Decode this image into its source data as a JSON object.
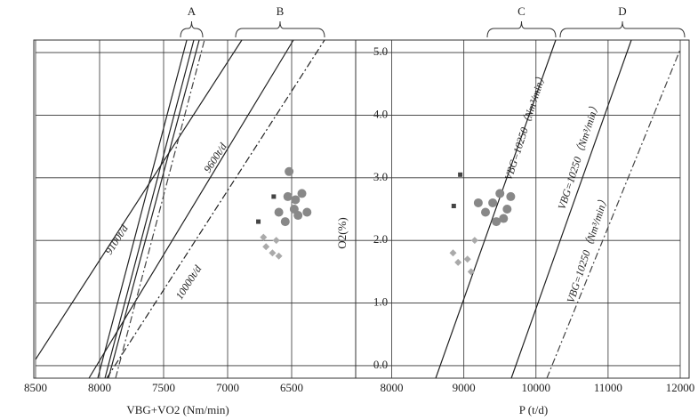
{
  "chart_data": [
    {
      "type": "line",
      "xlabel": "VBG+VO2 (Nm/min)",
      "ylabel": "O2(%)",
      "xlim": [
        8500,
        6000
      ],
      "xticks": [
        8500,
        8000,
        7500,
        7000,
        6500
      ],
      "ylim": [
        -0.2,
        5.2
      ],
      "yticks": [
        {
          "value": 0,
          "label": "0.0"
        },
        {
          "value": 1,
          "label": "1.0"
        },
        {
          "value": 2,
          "label": "2.0"
        },
        {
          "value": 3,
          "label": "3.0"
        },
        {
          "value": 4,
          "label": "4.0"
        },
        {
          "value": 5,
          "label": "5.0"
        }
      ],
      "grid": true,
      "annotations": [
        "A",
        "B"
      ],
      "lines": [
        {
          "name": "9100t/d",
          "color": "#222222",
          "style": "solid",
          "x": [
            8500,
            6889
          ],
          "y": [
            0.1,
            5.2
          ]
        },
        {
          "name": "9600t/d",
          "color": "#222222",
          "style": "solid",
          "x": [
            8083,
            6486
          ],
          "y": [
            -0.2,
            5.2
          ]
        },
        {
          "name": "10000t/d",
          "color": "#222222",
          "style": "dashdot",
          "x": [
            7944,
            6243
          ],
          "y": [
            -0.2,
            5.2
          ]
        },
        {
          "color": "#222222",
          "style": "solid",
          "x": [
            8014,
            7319
          ],
          "y": [
            -0.2,
            5.2
          ]
        },
        {
          "color": "#222222",
          "style": "solid",
          "x": [
            7958,
            7264
          ],
          "y": [
            -0.2,
            5.2
          ]
        },
        {
          "color": "#222222",
          "style": "solid",
          "x": [
            7931,
            7222
          ],
          "y": [
            -0.2,
            5.2
          ]
        },
        {
          "color": "#444444",
          "style": "dashdot",
          "x": [
            7875,
            7181
          ],
          "y": [
            -0.2,
            5.2
          ]
        }
      ],
      "scatter": [
        {
          "marker": "circle",
          "color": "#888888",
          "x": [
            6520,
            6530,
            6470,
            6420,
            6600,
            6450,
            6380,
            6550,
            6480
          ],
          "y": [
            3.1,
            2.7,
            2.65,
            2.75,
            2.45,
            2.4,
            2.45,
            2.3,
            2.5
          ]
        },
        {
          "marker": "diamond",
          "color": "#aaaaaa",
          "x": [
            6720,
            6650,
            6600,
            6700,
            6620
          ],
          "y": [
            2.05,
            1.8,
            1.75,
            1.9,
            2.0
          ]
        },
        {
          "marker": "square",
          "color": "#444444",
          "x": [
            6640,
            6760
          ],
          "y": [
            2.7,
            2.3
          ]
        }
      ]
    },
    {
      "type": "line",
      "xlabel": "P (t/d)",
      "xlim": [
        7500,
        12000
      ],
      "xticks": [
        8000,
        9000,
        10000,
        11000,
        12000
      ],
      "ylim": [
        -0.2,
        5.2
      ],
      "grid": true,
      "annotations": [
        "C",
        "D"
      ],
      "lines": [
        {
          "name": "VBG=10250（Nm³/min）",
          "color": "#222222",
          "style": "solid",
          "x": [
            8610,
            10274
          ],
          "y": [
            -0.2,
            5.2
          ]
        },
        {
          "name": "VBG=10250（Nm³/min）",
          "color": "#222222",
          "style": "solid",
          "x": [
            9658,
            11322
          ],
          "y": [
            -0.2,
            5.2
          ]
        },
        {
          "name": "VBG=10250（Nm³/min）",
          "color": "#444444",
          "style": "dashdot",
          "x": [
            10151,
            12000
          ],
          "y": [
            -0.2,
            5.05
          ]
        }
      ],
      "scatter": [
        {
          "marker": "circle",
          "color": "#888888",
          "x": [
            9400,
            9500,
            9300,
            9600,
            9450,
            9200,
            9550,
            9650
          ],
          "y": [
            2.6,
            2.75,
            2.45,
            2.5,
            2.3,
            2.6,
            2.35,
            2.7
          ]
        },
        {
          "marker": "diamond",
          "color": "#aaaaaa",
          "x": [
            8920,
            9050,
            9150,
            8850,
            9100
          ],
          "y": [
            1.65,
            1.7,
            2.0,
            1.8,
            1.5
          ]
        },
        {
          "marker": "square",
          "color": "#444444",
          "x": [
            8950,
            8860
          ],
          "y": [
            3.05,
            2.55
          ]
        }
      ]
    }
  ]
}
